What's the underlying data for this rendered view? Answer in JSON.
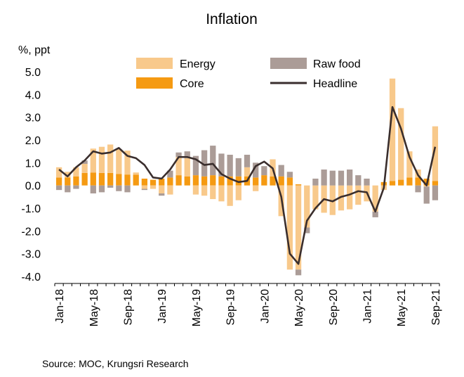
{
  "chart_data": {
    "type": "bar",
    "title": "Inflation",
    "ylabel": "%, ppt",
    "xlabel": "",
    "ylim": [
      -4.0,
      5.0
    ],
    "yticks": [
      "5.0",
      "4.0",
      "3.0",
      "2.0",
      "1.0",
      "0.0",
      "-1.0",
      "-2.0",
      "-3.0",
      "-4.0"
    ],
    "ytick_values": [
      5,
      4,
      3,
      2,
      1,
      0,
      -1,
      -2,
      -3,
      -4
    ],
    "stacked": true,
    "grid": false,
    "legend_position": "top",
    "categories": [
      "Jan-18",
      "Feb-18",
      "Mar-18",
      "Apr-18",
      "May-18",
      "Jun-18",
      "Jul-18",
      "Aug-18",
      "Sep-18",
      "Oct-18",
      "Nov-18",
      "Dec-18",
      "Jan-19",
      "Feb-19",
      "Mar-19",
      "Apr-19",
      "May-19",
      "Jun-19",
      "Jul-19",
      "Aug-19",
      "Sep-19",
      "Oct-19",
      "Nov-19",
      "Dec-19",
      "Jan-20",
      "Feb-20",
      "Mar-20",
      "Apr-20",
      "May-20",
      "Jun-20",
      "Jul-20",
      "Aug-20",
      "Sep-20",
      "Oct-20",
      "Nov-20",
      "Dec-20",
      "Jan-21",
      "Feb-21",
      "Mar-21",
      "Apr-21",
      "May-21",
      "Jun-21",
      "Jul-21",
      "Aug-21",
      "Sep-21"
    ],
    "xtick_labels": [
      "Jan-18",
      "May-18",
      "Sep-18",
      "Jan-19",
      "May-19",
      "Sep-19",
      "Jan-20",
      "May-20",
      "Sep-20",
      "Jan-21",
      "May-21",
      "Sep-21"
    ],
    "series": [
      {
        "name": "Core",
        "kind": "bar",
        "color": "#f59a12",
        "values": [
          0.35,
          0.35,
          0.4,
          0.55,
          0.57,
          0.55,
          0.55,
          0.5,
          0.48,
          0.47,
          0.3,
          0.25,
          0.3,
          0.35,
          0.45,
          0.4,
          0.45,
          0.4,
          0.45,
          0.4,
          0.4,
          0.4,
          0.4,
          0.35,
          0.45,
          0.4,
          0.4,
          0.35,
          0.05,
          0.0,
          0.0,
          0.0,
          0.0,
          0.0,
          0.0,
          0.0,
          0.0,
          0.0,
          0.15,
          0.2,
          0.25,
          0.35,
          0.35,
          0.3,
          0.2
        ]
      },
      {
        "name": "Energy",
        "kind": "bar",
        "color": "#f8c98b",
        "values": [
          0.45,
          0.25,
          0.4,
          0.4,
          1.05,
          1.15,
          1.25,
          1.1,
          1.05,
          0.1,
          -0.15,
          -0.15,
          -0.35,
          -0.4,
          0.8,
          0.8,
          -0.4,
          -0.45,
          -0.6,
          -0.7,
          -0.9,
          -0.65,
          0.4,
          -0.25,
          0.0,
          0.75,
          -1.35,
          -3.7,
          -3.7,
          -1.85,
          -1.05,
          -1.2,
          -1.3,
          -1.1,
          -1.05,
          -0.85,
          -0.7,
          -1.15,
          -0.2,
          4.5,
          3.15,
          1.15,
          0.35,
          -0.05,
          2.4
        ]
      },
      {
        "name": "Raw food",
        "kind": "bar",
        "color": "#ab9c97",
        "values": [
          -0.2,
          -0.3,
          -0.15,
          0.15,
          -0.35,
          -0.3,
          -0.1,
          -0.25,
          -0.3,
          0.0,
          -0.05,
          0.0,
          -0.1,
          0.3,
          0.2,
          0.3,
          0.85,
          1.15,
          1.3,
          1.0,
          0.95,
          0.8,
          0.55,
          0.65,
          0.4,
          0.0,
          0.5,
          0.25,
          -0.25,
          -0.25,
          0.3,
          0.7,
          0.65,
          0.65,
          0.7,
          0.45,
          0.3,
          -0.25,
          0.0,
          0.0,
          0.0,
          0.0,
          -0.3,
          -0.75,
          -0.65
        ]
      },
      {
        "name": "Headline",
        "kind": "line",
        "color": "#3a2e2d",
        "values": [
          0.7,
          0.4,
          0.8,
          1.1,
          1.5,
          1.4,
          1.45,
          1.65,
          1.3,
          1.2,
          0.9,
          0.35,
          0.3,
          0.7,
          1.25,
          1.25,
          1.15,
          0.9,
          0.95,
          0.5,
          0.3,
          0.15,
          0.2,
          0.85,
          1.05,
          0.75,
          -0.5,
          -3.0,
          -3.45,
          -1.55,
          -1.0,
          -0.6,
          -0.7,
          -0.5,
          -0.4,
          -0.25,
          -0.3,
          -1.15,
          -0.1,
          3.45,
          2.5,
          1.25,
          0.45,
          0.0,
          1.7
        ]
      }
    ]
  },
  "source_text": "Source:  MOC, Krungsri Research"
}
